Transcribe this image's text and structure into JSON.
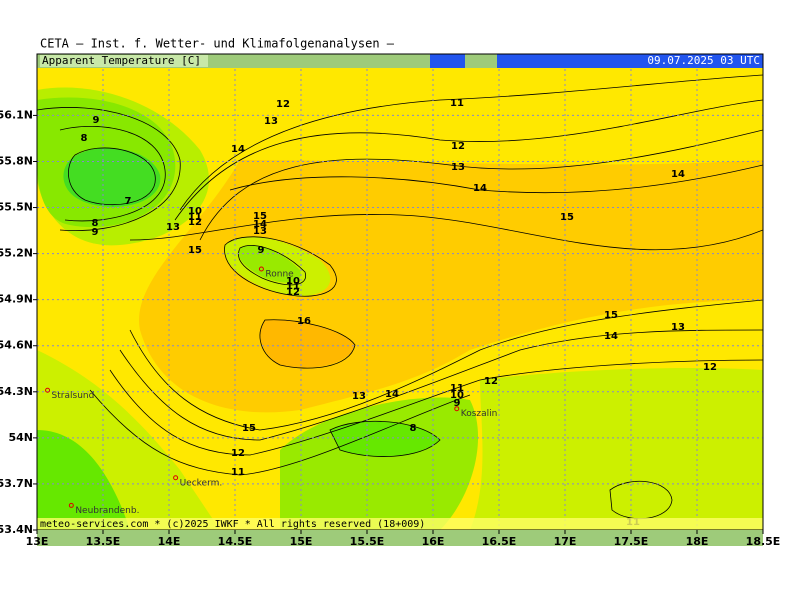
{
  "header": "CETA — Inst. f. Wetter- und Klimafolgenanalysen —",
  "title": "Apparent Temperature [C]",
  "time": "09.07.2025 03 UTC",
  "footer": "meteo-services.com * (c)2025 IWKF * All rights reserved (18+009)",
  "xlim": [
    13,
    18.5
  ],
  "ylim": [
    53.4,
    56.5
  ],
  "xticks": [
    {
      "value": 13,
      "label": "13E"
    },
    {
      "value": 13.5,
      "label": "13.5E"
    },
    {
      "value": 14,
      "label": "14E"
    },
    {
      "value": 14.5,
      "label": "14.5E"
    },
    {
      "value": 15,
      "label": "15E"
    },
    {
      "value": 15.5,
      "label": "15.5E"
    },
    {
      "value": 16,
      "label": "16E"
    },
    {
      "value": 16.5,
      "label": "16.5E"
    },
    {
      "value": 17,
      "label": "17E"
    },
    {
      "value": 17.5,
      "label": "17.5E"
    },
    {
      "value": 18,
      "label": "18E"
    },
    {
      "value": 18.5,
      "label": "18.5E"
    }
  ],
  "yticks": [
    {
      "value": 53.4,
      "label": "53.4N"
    },
    {
      "value": 53.7,
      "label": "53.7N"
    },
    {
      "value": 54,
      "label": "54N"
    },
    {
      "value": 54.3,
      "label": "54.3N"
    },
    {
      "value": 54.6,
      "label": "54.6N"
    },
    {
      "value": 54.9,
      "label": "54.9N"
    },
    {
      "value": 55.2,
      "label": "55.2N"
    },
    {
      "value": 55.5,
      "label": "55.5N"
    },
    {
      "value": 55.8,
      "label": "55.8N"
    },
    {
      "value": 56.1,
      "label": "56.1N"
    }
  ],
  "cities": [
    {
      "name": "Ronne",
      "lon": 14.7,
      "lat": 55.1
    },
    {
      "name": "Stralsund",
      "lon": 13.08,
      "lat": 54.31
    },
    {
      "name": "Koszalin",
      "lon": 16.18,
      "lat": 54.19
    },
    {
      "name": "Ueckerm.",
      "lon": 14.05,
      "lat": 53.74
    },
    {
      "name": "Neubrandenb.",
      "lon": 13.26,
      "lat": 53.56
    }
  ],
  "contour_labels": [
    9,
    8,
    7,
    8,
    9,
    10,
    11,
    12,
    13,
    14,
    13,
    12,
    11,
    12,
    13,
    14,
    15,
    14,
    15,
    14,
    13,
    15,
    9,
    10,
    11,
    12,
    16,
    15,
    14,
    13,
    12,
    12,
    11,
    10,
    9,
    14,
    13,
    15,
    8,
    12,
    11,
    11
  ]
}
